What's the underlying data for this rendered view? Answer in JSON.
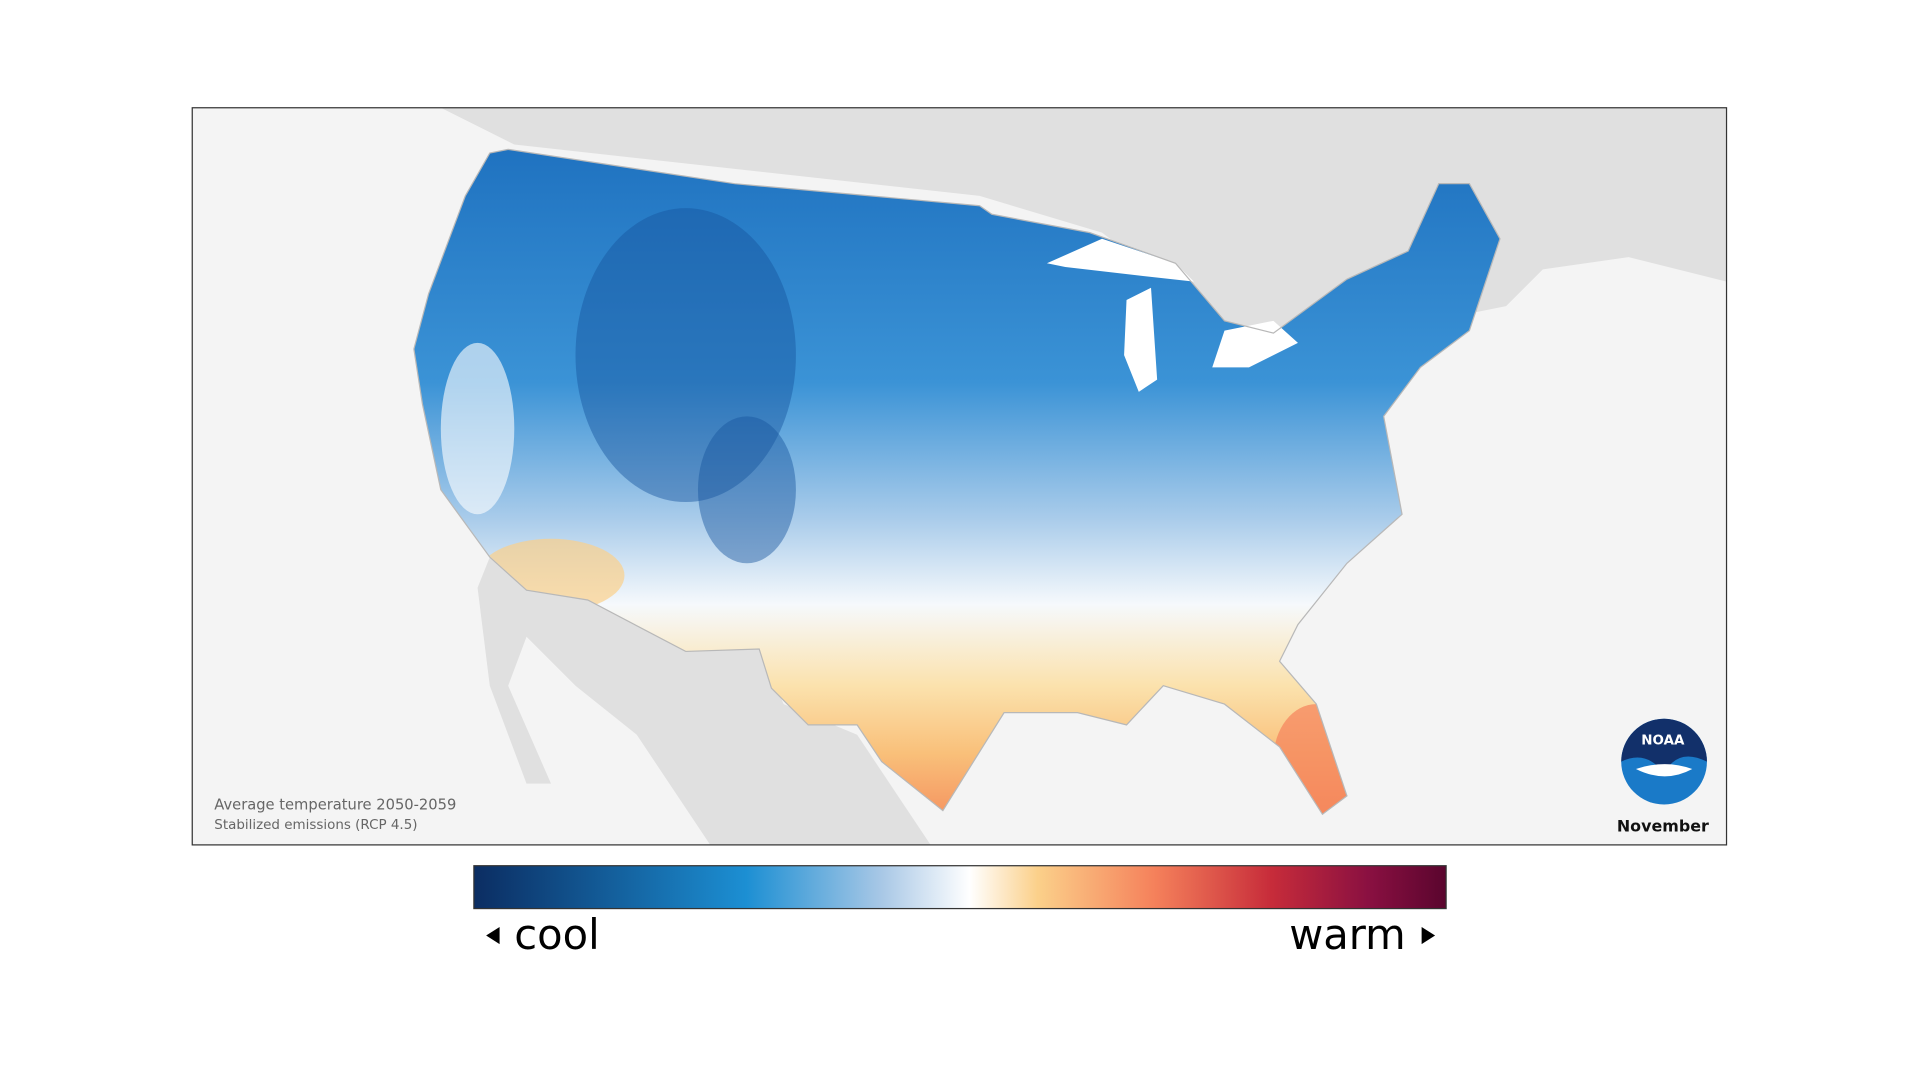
{
  "map": {
    "caption_line1": "Average temperature 2050-2059",
    "caption_line2": "Stabilized emissions (RCP 4.5)",
    "month": "November",
    "logo_text": "NOAA"
  },
  "legend": {
    "low_label": "cool",
    "high_label": "warm"
  }
}
